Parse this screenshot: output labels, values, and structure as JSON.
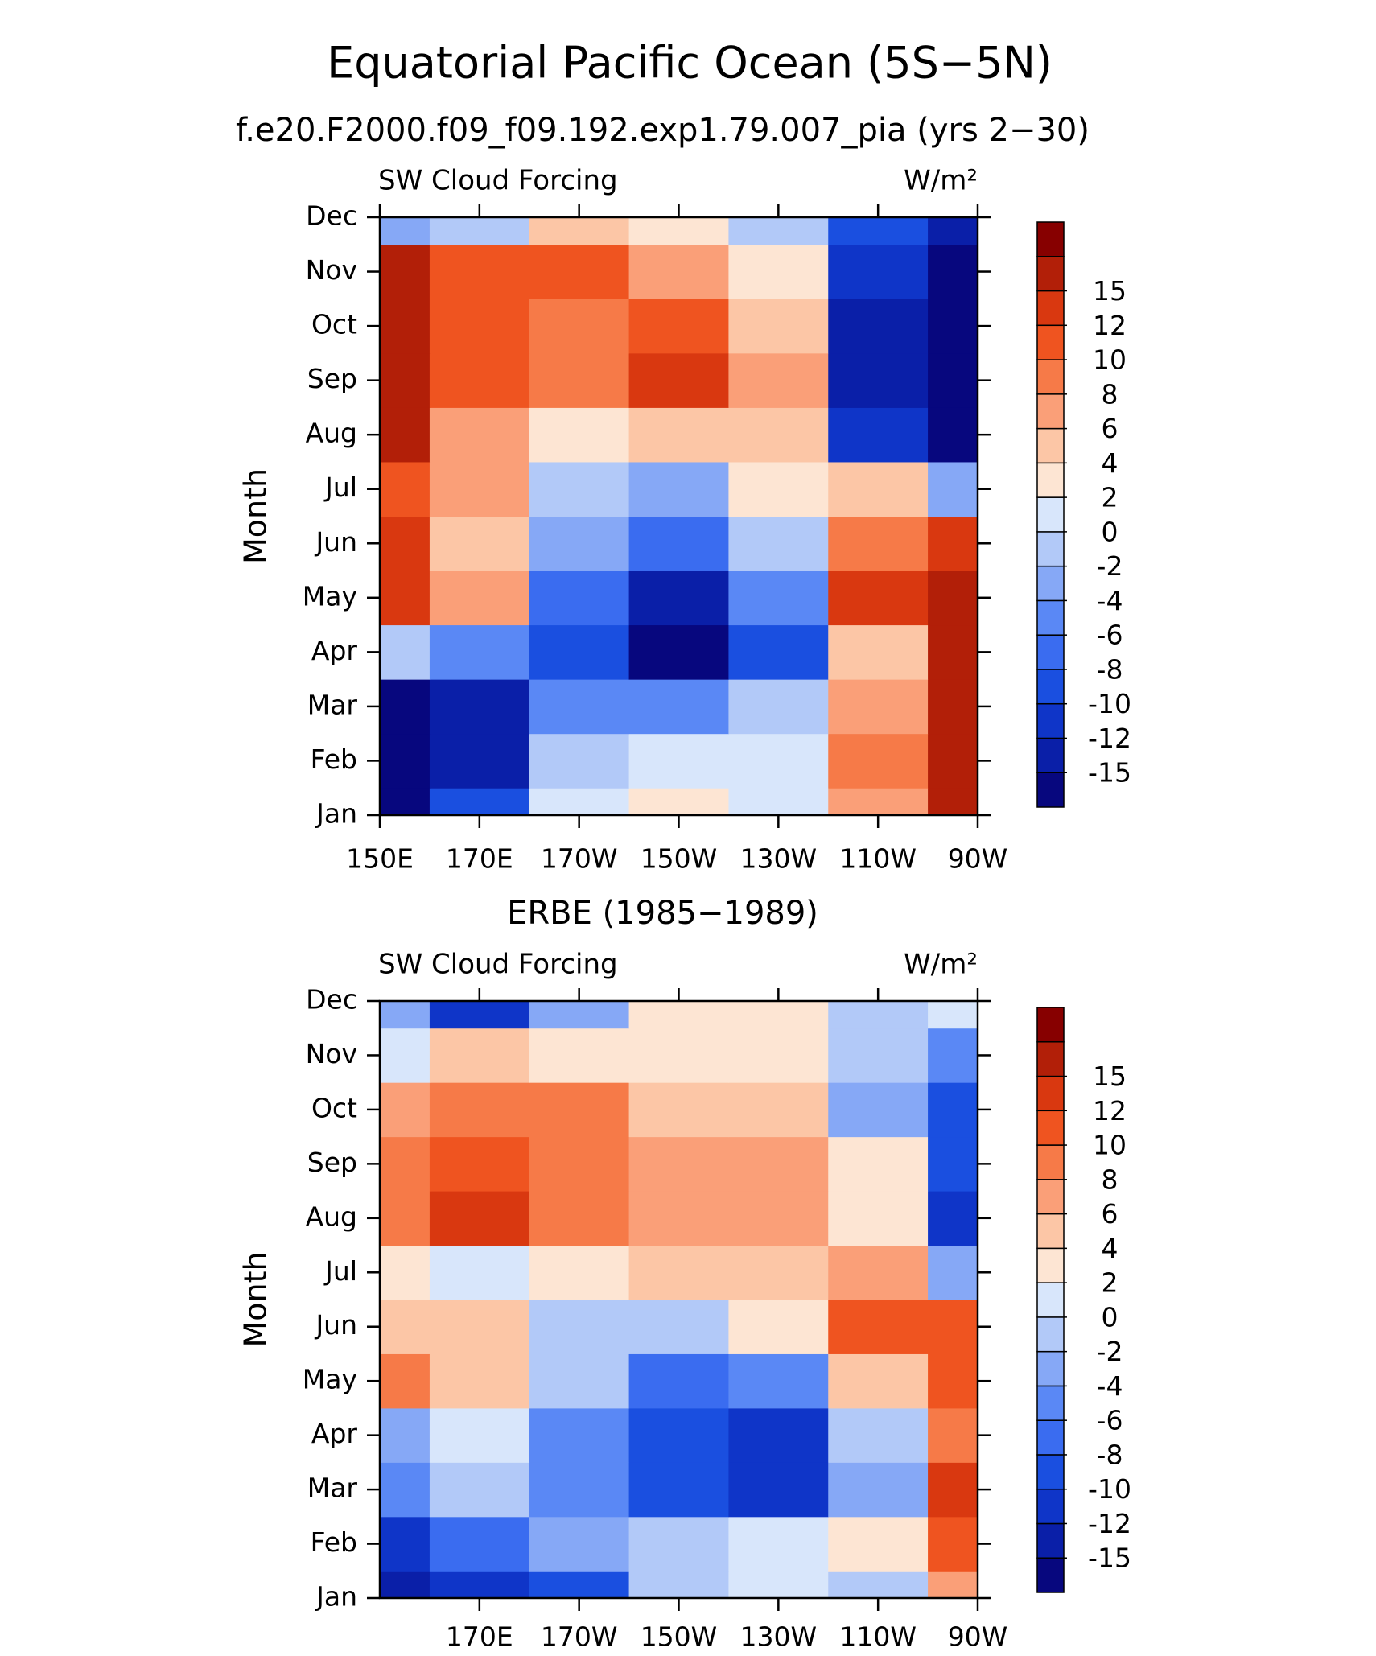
{
  "title": "Equatorial Pacific Ocean (5S−5N)",
  "chart_data": [
    {
      "type": "contour",
      "title": "f.e20.F2000.f09_f09.192.exp1.79.007_pia (yrs 2−30)",
      "left_label": "SW Cloud Forcing",
      "right_label": "W/m²",
      "y_label": "Month",
      "x": [
        150,
        170,
        190,
        210,
        230,
        250,
        270
      ],
      "categories": [
        "Jan",
        "Feb",
        "Mar",
        "Apr",
        "May",
        "Jun",
        "Jul",
        "Aug",
        "Sep",
        "Oct",
        "Nov",
        "Dec"
      ],
      "xlim": [
        150,
        270
      ],
      "xticks": [
        {
          "value": 150,
          "label": "150E"
        },
        {
          "value": 170,
          "label": "170E"
        },
        {
          "value": 190,
          "label": "170W"
        },
        {
          "value": 210,
          "label": "150W"
        },
        {
          "value": 230,
          "label": "130W"
        },
        {
          "value": 250,
          "label": "110W"
        },
        {
          "value": 270,
          "label": "90W"
        }
      ],
      "values": [
        [
          -18,
          -10,
          0,
          2,
          1,
          6,
          18
        ],
        [
          -18,
          -14,
          -2,
          1,
          1,
          8,
          18
        ],
        [
          -18,
          -14,
          -6,
          -6,
          -2,
          6,
          18
        ],
        [
          -2,
          -5,
          -10,
          -17,
          -10,
          4,
          18
        ],
        [
          14,
          6,
          -8,
          -14,
          -6,
          14,
          18
        ],
        [
          12,
          4,
          -4,
          -8,
          -2,
          8,
          14
        ],
        [
          10,
          6,
          -2,
          -3,
          3,
          4,
          -4
        ],
        [
          16,
          6,
          2,
          4,
          4,
          -12,
          -18
        ],
        [
          18,
          10,
          8,
          13,
          6,
          -14,
          -18
        ],
        [
          18,
          10,
          9,
          10,
          5,
          -14,
          -18
        ],
        [
          16,
          10,
          10,
          7,
          2,
          -12,
          -18
        ],
        [
          -4,
          -2,
          4,
          2,
          -2,
          -10,
          -14
        ]
      ],
      "levels": [
        -15,
        -12,
        -10,
        -8,
        -6,
        -4,
        -2,
        0,
        2,
        4,
        6,
        8,
        10,
        12,
        15
      ],
      "colors": [
        "#07077e",
        "#0a1fa8",
        "#0f35c8",
        "#1a4fe0",
        "#3a6cf0",
        "#5a88f5",
        "#86a8f6",
        "#b2c9f8",
        "#d8e6fb",
        "#fde5d3",
        "#fcc6a6",
        "#fa9f78",
        "#f67a48",
        "#ef5420",
        "#d93810",
        "#b21f08",
        "#870000"
      ]
    },
    {
      "type": "contour",
      "title": "ERBE (1985−1989)",
      "left_label": "SW Cloud Forcing",
      "right_label": "W/m²",
      "y_label": "Month",
      "x": [
        150,
        170,
        190,
        210,
        230,
        250,
        270
      ],
      "categories": [
        "Jan",
        "Feb",
        "Mar",
        "Apr",
        "May",
        "Jun",
        "Jul",
        "Aug",
        "Sep",
        "Oct",
        "Nov",
        "Dec"
      ],
      "xlim": [
        150,
        270
      ],
      "xticks": [
        {
          "value": 170,
          "label": "170E"
        },
        {
          "value": 190,
          "label": "170W"
        },
        {
          "value": 210,
          "label": "150W"
        },
        {
          "value": 230,
          "label": "130W"
        },
        {
          "value": 250,
          "label": "110W"
        },
        {
          "value": 270,
          "label": "90W"
        }
      ],
      "values": [
        [
          -14,
          -12,
          -10,
          -2,
          1,
          -2,
          6
        ],
        [
          -12,
          -8,
          -4,
          -2,
          0,
          2,
          10
        ],
        [
          -6,
          -2,
          -6,
          -10,
          -12,
          -4,
          12
        ],
        [
          -4,
          0,
          -6,
          -10,
          -12,
          -2,
          8
        ],
        [
          8,
          4,
          -2,
          -8,
          -6,
          4,
          10
        ],
        [
          4,
          4,
          -1,
          -2,
          2,
          10,
          10
        ],
        [
          3,
          1,
          2,
          4,
          4,
          6,
          -4
        ],
        [
          8,
          12,
          8,
          6,
          6,
          2,
          -12
        ],
        [
          8,
          10,
          8,
          6,
          6,
          2,
          -10
        ],
        [
          6,
          8,
          9,
          4,
          5,
          -4,
          -10
        ],
        [
          1,
          4,
          2,
          2,
          2,
          -2,
          -6
        ],
        [
          -4,
          -12,
          -4,
          2,
          2,
          -2,
          0
        ]
      ],
      "levels": [
        -15,
        -12,
        -10,
        -8,
        -6,
        -4,
        -2,
        0,
        2,
        4,
        6,
        8,
        10,
        12,
        15
      ],
      "colors": [
        "#07077e",
        "#0a1fa8",
        "#0f35c8",
        "#1a4fe0",
        "#3a6cf0",
        "#5a88f5",
        "#86a8f6",
        "#b2c9f8",
        "#d8e6fb",
        "#fde5d3",
        "#fcc6a6",
        "#fa9f78",
        "#f67a48",
        "#ef5420",
        "#d93810",
        "#b21f08",
        "#870000"
      ]
    }
  ]
}
